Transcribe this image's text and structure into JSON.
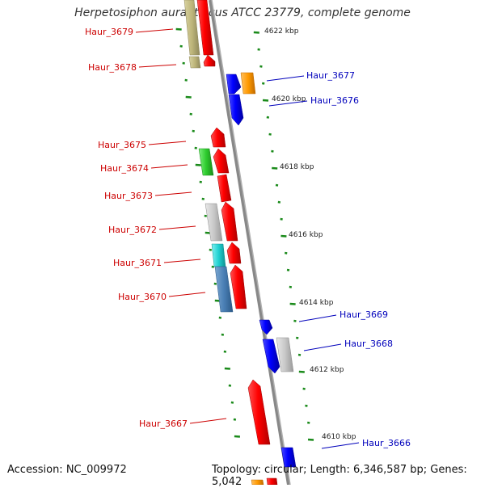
{
  "title": "Herpetosiphon aurantiacus ATCC 23779, complete genome",
  "footer": {
    "accession": "Accession: NC_009972",
    "topology": "Topology: circular; Length: 6,346,587 bp; Genes: 5,042"
  },
  "colors": {
    "reverse_label": "#cc0000",
    "forward_label": "#0000bb",
    "backbone": "#888888",
    "tick": "#1a8a1a"
  },
  "scale_ticks": [
    "4622 kbp",
    "4620 kbp",
    "4618 kbp",
    "4616 kbp",
    "4614 kbp",
    "4612 kbp",
    "4610 kbp"
  ],
  "gene_labels": {
    "reverse": [
      "Haur_3679",
      "Haur_3678",
      "Haur_3675",
      "Haur_3674",
      "Haur_3673",
      "Haur_3672",
      "Haur_3671",
      "Haur_3670",
      "Haur_3667"
    ],
    "forward": [
      "Haur_3677",
      "Haur_3676",
      "Haur_3669",
      "Haur_3668",
      "Haur_3666"
    ]
  }
}
